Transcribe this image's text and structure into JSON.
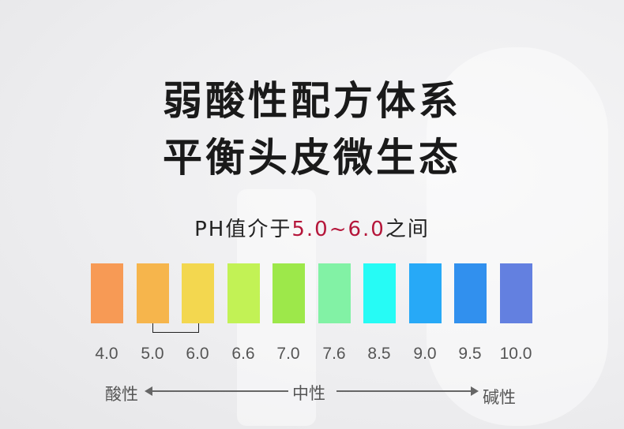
{
  "headline": {
    "line1": "弱酸性配方体系",
    "line2": "平衡头皮微生态"
  },
  "subtitle": {
    "prefix": "PH值介于",
    "range": "5.0~6.0",
    "suffix": "之间",
    "highlight_color": "#b5163a"
  },
  "ph_scale": [
    {
      "value": "4.0",
      "color": "#f79a55"
    },
    {
      "value": "5.0",
      "color": "#f6b54c"
    },
    {
      "value": "6.0",
      "color": "#f3d74f"
    },
    {
      "value": "6.6",
      "color": "#c2f255"
    },
    {
      "value": "7.0",
      "color": "#9de84a"
    },
    {
      "value": "7.6",
      "color": "#82f2a5"
    },
    {
      "value": "8.5",
      "color": "#26fbf5"
    },
    {
      "value": "9.0",
      "color": "#27a9f7"
    },
    {
      "value": "9.5",
      "color": "#3190ee"
    },
    {
      "value": "10.0",
      "color": "#6380e0"
    }
  ],
  "axis": {
    "acidic": "酸性",
    "neutral": "中性",
    "alkaline": "碱性"
  }
}
